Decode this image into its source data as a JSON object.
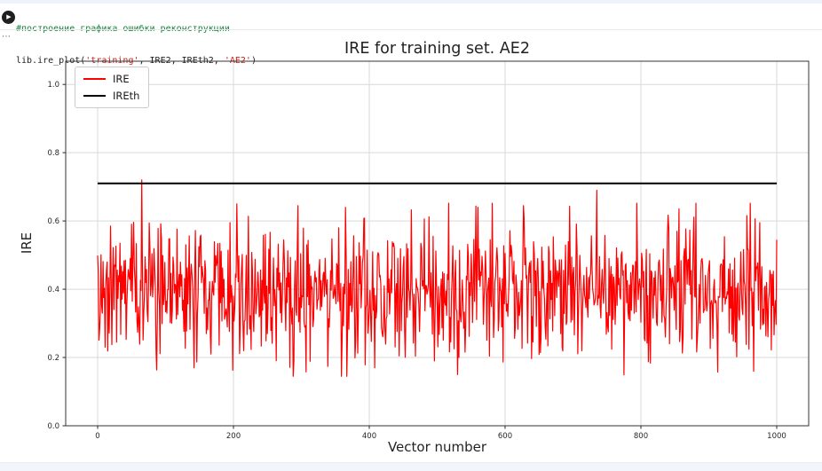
{
  "cell": {
    "comment": "#построение графика ошибки реконструкции",
    "code_parts": {
      "prefix": "lib.ire_plot(",
      "arg1": "'training'",
      "mid": ", IRE2, IREth2, ",
      "arg2": "'AE2'",
      "suffix": ")"
    },
    "collapsed_indicator": "⋯"
  },
  "chart_data": {
    "type": "line",
    "title": "IRE for training set. AE2",
    "xlabel": "Vector number",
    "ylabel": "IRE",
    "xlim": [
      -47,
      1047
    ],
    "ylim": [
      0,
      1.068
    ],
    "x_ticks": [
      0,
      200,
      400,
      600,
      800,
      1000
    ],
    "y_ticks": [
      0.0,
      0.2,
      0.4,
      0.6,
      0.8,
      1.0
    ],
    "grid": true,
    "grid_color": "#d9d9d9",
    "axes_color": "#333333",
    "tick_label_color": "#262626",
    "legend": {
      "position": "upper-left",
      "entries": [
        {
          "label": "IRE",
          "color": "#ff0000"
        },
        {
          "label": "IREth",
          "color": "#000000"
        }
      ]
    },
    "series": [
      {
        "name": "IRE",
        "kind": "noise",
        "color": "#ff0000",
        "linewidth": 1.2,
        "x_start": 0,
        "x_end": 1000,
        "n_points": 1001,
        "seed": 20240915,
        "mean": 0.395,
        "std": 0.095,
        "clip_min": 0.145,
        "clip_max": 0.652,
        "notable_peaks": [
          {
            "x": 65,
            "value": 0.72
          },
          {
            "x": 205,
            "value": 0.65
          },
          {
            "x": 295,
            "value": 0.645
          },
          {
            "x": 365,
            "value": 0.64
          },
          {
            "x": 560,
            "value": 0.64
          },
          {
            "x": 627,
            "value": 0.645
          },
          {
            "x": 735,
            "value": 0.69
          }
        ]
      },
      {
        "name": "IREth",
        "kind": "constant",
        "color": "#000000",
        "linewidth": 2,
        "x_start": 0,
        "x_end": 1000,
        "value": 0.71
      }
    ]
  }
}
